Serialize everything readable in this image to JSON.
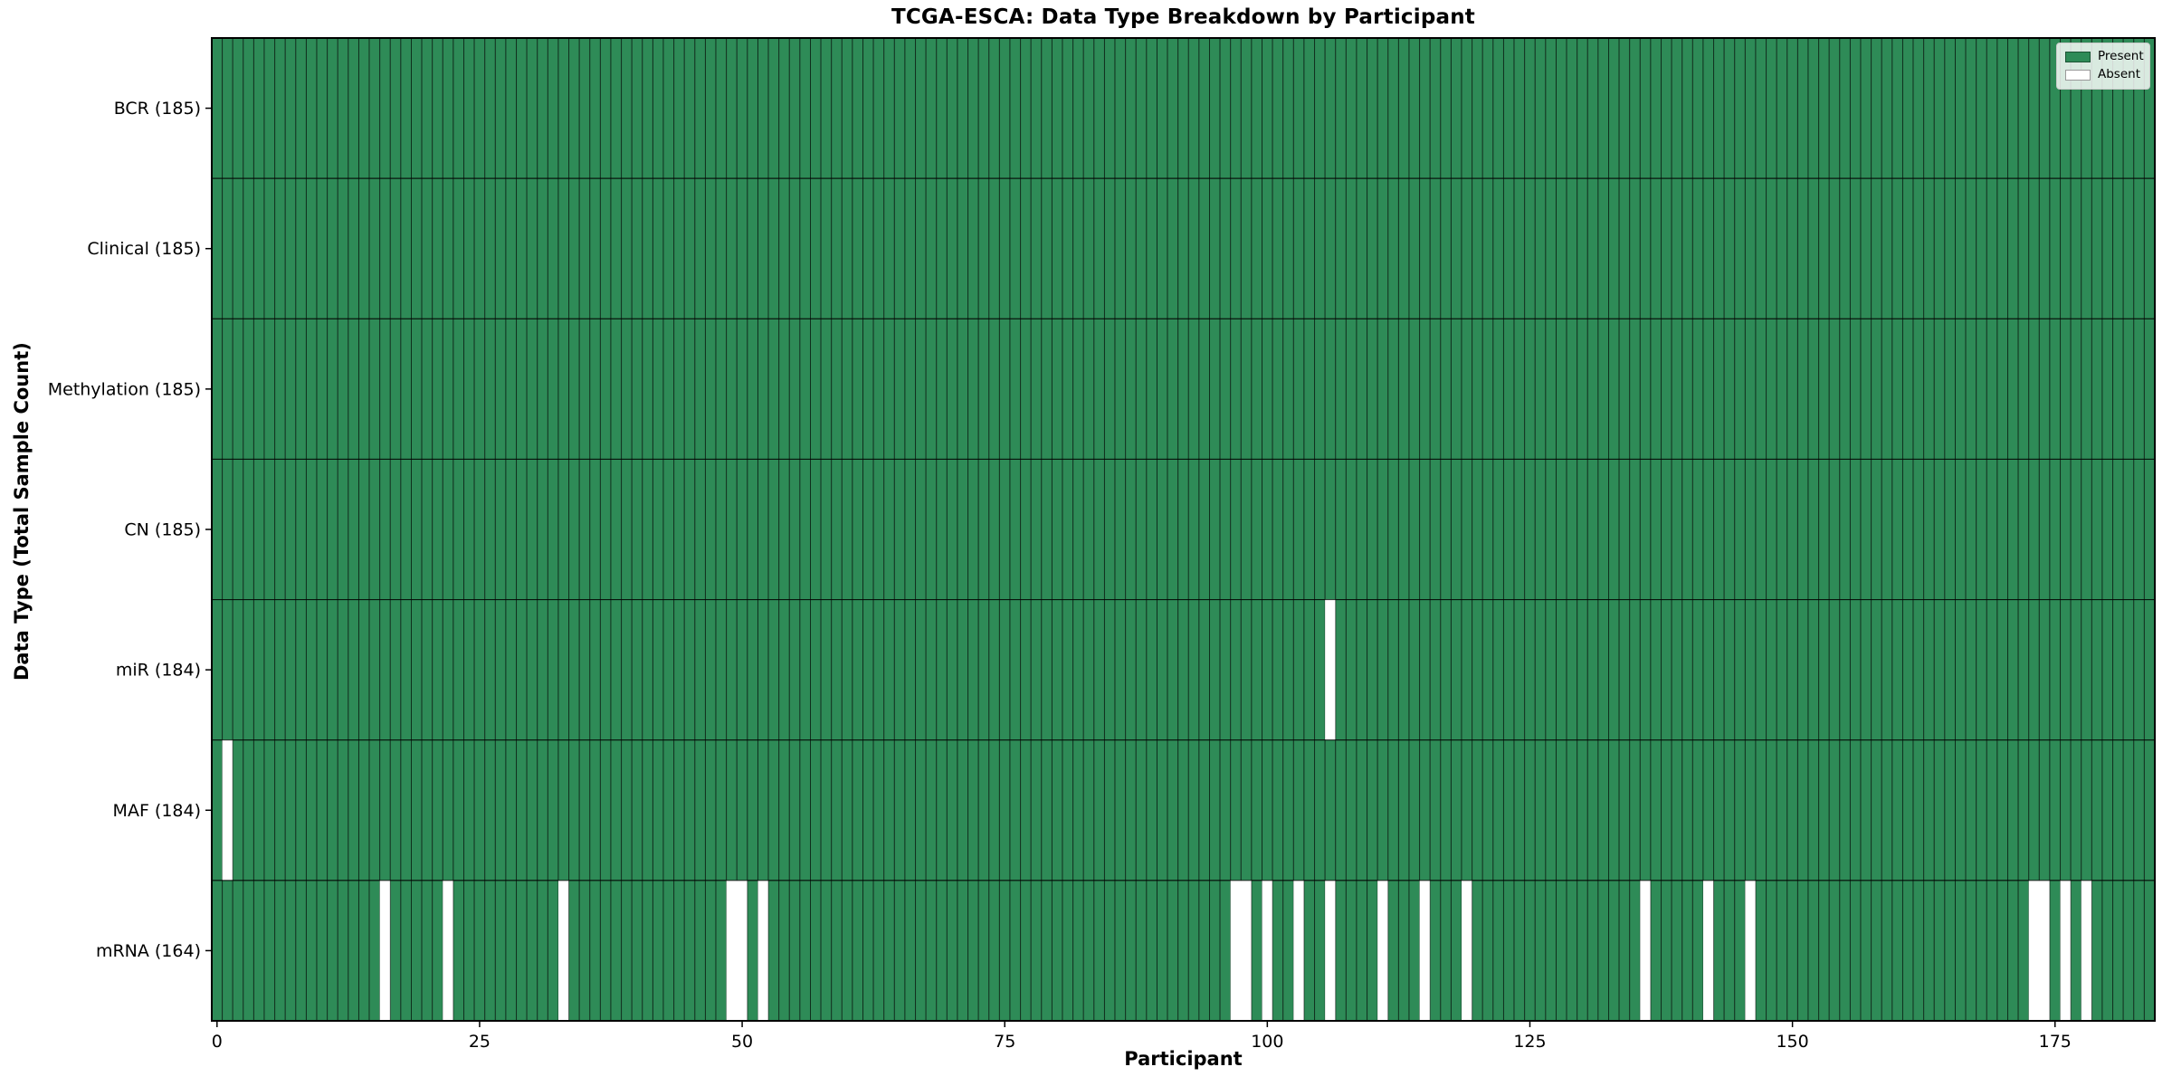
{
  "chart_data": {
    "type": "heatmap",
    "title": "TCGA-ESCA: Data Type Breakdown by Participant",
    "xlabel": "Participant",
    "ylabel": "Data Type (Total Sample Count)",
    "n_participants": 185,
    "x_axis_range": [
      0,
      185
    ],
    "x_ticks": [
      0,
      25,
      50,
      75,
      100,
      125,
      150,
      175
    ],
    "grid": false,
    "legend_position": "upper-right",
    "legend": [
      {
        "label": "Present",
        "color": "#2e8b57"
      },
      {
        "label": "Absent",
        "color": "#ffffff"
      }
    ],
    "rows": [
      {
        "label": "BCR (185)",
        "data_type": "BCR",
        "present_count": 185,
        "absent_participants": []
      },
      {
        "label": "Clinical (185)",
        "data_type": "Clinical",
        "present_count": 185,
        "absent_participants": []
      },
      {
        "label": "Methylation (185)",
        "data_type": "Methylation",
        "present_count": 185,
        "absent_participants": []
      },
      {
        "label": "CN (185)",
        "data_type": "CN",
        "present_count": 185,
        "absent_participants": []
      },
      {
        "label": "miR (184)",
        "data_type": "miR",
        "present_count": 184,
        "absent_participants": [
          106
        ]
      },
      {
        "label": "MAF (184)",
        "data_type": "MAF",
        "present_count": 184,
        "absent_participants": [
          1
        ]
      },
      {
        "label": "mRNA (164)",
        "data_type": "mRNA",
        "present_count": 164,
        "absent_participants": [
          16,
          22,
          33,
          49,
          50,
          52,
          97,
          98,
          100,
          103,
          106,
          111,
          115,
          119,
          136,
          142,
          146,
          173,
          174,
          176,
          178
        ]
      }
    ],
    "colors": {
      "present": "#2e8b57",
      "absent": "#ffffff",
      "cell_edge": "rgba(0,0,0,0.55)",
      "row_divider": "rgba(0,0,0,0.6)",
      "spine": "#000000",
      "tick": "#000000"
    }
  }
}
